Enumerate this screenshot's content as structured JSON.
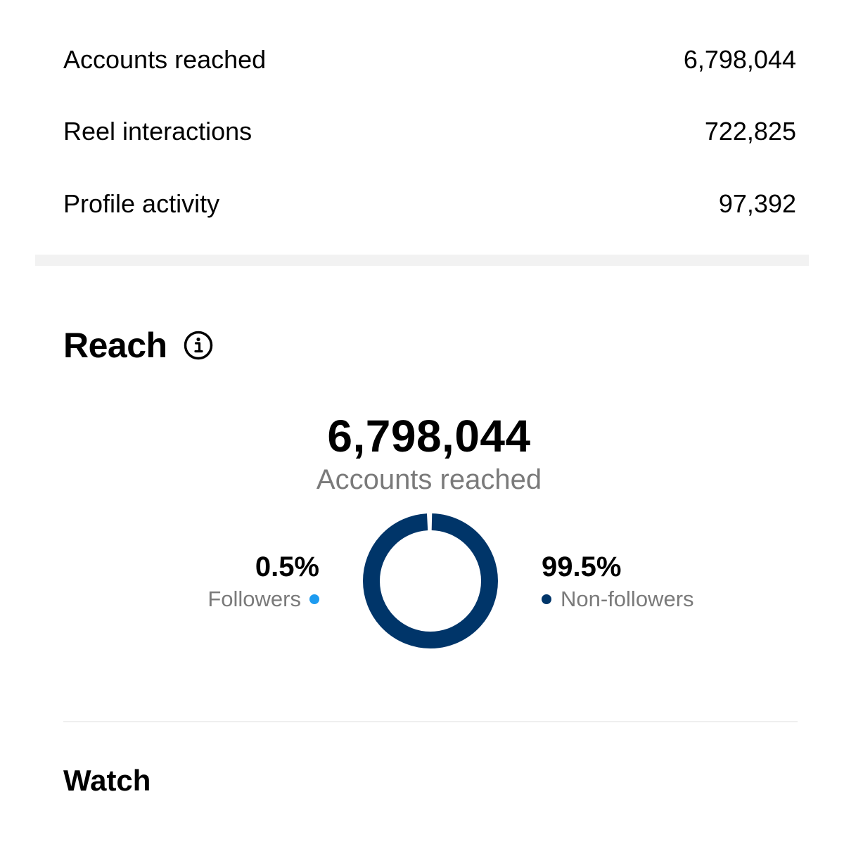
{
  "overview": {
    "rows": [
      {
        "label": "Accounts reached",
        "value": "6,798,044"
      },
      {
        "label": "Reel interactions",
        "value": "722,825"
      },
      {
        "label": "Profile activity",
        "value": "97,392"
      }
    ]
  },
  "reach": {
    "title": "Reach",
    "info_icon": "info-circle-icon",
    "total": "6,798,044",
    "total_label": "Accounts reached",
    "followers": {
      "percent_text": "0.5%",
      "label": "Followers",
      "share": 0.5,
      "color": "#1d9bf0"
    },
    "non_followers": {
      "percent_text": "99.5%",
      "label": "Non-followers",
      "share": 99.5,
      "color": "#003569"
    }
  },
  "watch": {
    "title": "Watch"
  }
}
